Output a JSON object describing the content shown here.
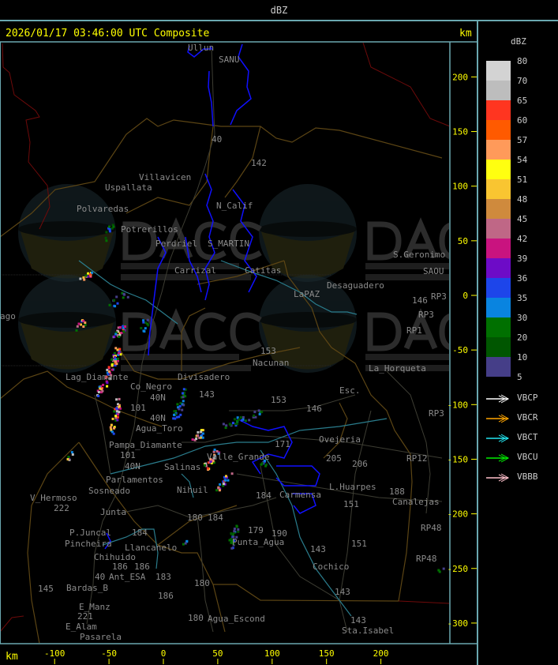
{
  "header": {
    "unit_label": "dBZ"
  },
  "map": {
    "title": "2026/01/17 03:46:00 UTC Composite",
    "km_label": "km",
    "y_axis_ticks": [
      200,
      150,
      100,
      50,
      0,
      -50,
      -100,
      -150,
      -200,
      -250,
      -300
    ],
    "x_axis_ticks": [
      -100,
      -50,
      0,
      50,
      100,
      150,
      200
    ],
    "watermark": {
      "logo_text": "DACC",
      "line1": "Dirección de Agricultura",
      "line2": "y Contingencias Climáticas",
      "url": "http://www.contingencias.mendoza.gov.ar"
    },
    "places": [
      "Ullun",
      "SANU",
      "40",
      "142",
      "Villavicen",
      "Uspallata",
      "N_Calif",
      "Polvaredas",
      "Potrerillos",
      "Perdriel",
      "S_MARTIN",
      "Carrizal",
      "Catitas",
      "S.Geronimo",
      "SAOU",
      "Desaguadero",
      "LaPAZ",
      "146",
      "RP3",
      "RP3",
      "RP1",
      "153",
      "Nacunan",
      "La_Horqueta",
      "Lag_Diamante",
      "Co_Negro",
      "Divisadero",
      "40N",
      "143",
      "153",
      "146",
      "Esc.",
      "101",
      "40N",
      "Agua_Toro",
      "RP3",
      "Pampa_Diamante",
      "101",
      "40N",
      "Salinas",
      "Parlamentos",
      "Sosneado",
      "Nihuil",
      "V_Hermoso",
      "222",
      "Junta",
      "184",
      "Ovejeria",
      "205",
      "206",
      "L.Huarpes",
      "151",
      "188",
      "Canalejas",
      "Carmensa",
      "180",
      "184",
      "179",
      "190",
      "P.Juncal",
      "Pincheira",
      "184",
      "Llancanelo",
      "Punta_Agua",
      "151",
      "143",
      "RP48",
      "RP48",
      "Chihuido",
      "186",
      "186",
      "183",
      "Ant_ESA",
      "40",
      "Cochico",
      "145",
      "Bardas_B",
      "180",
      "186",
      "143",
      "E_Manz",
      "221",
      "E_Alam",
      "Pasarela",
      "180",
      "Agua_Escond",
      "143",
      "Sta.Isabel",
      "RP12",
      "171",
      "Valle_Grande",
      "ago"
    ]
  },
  "legend": {
    "title": "dBZ",
    "levels": [
      {
        "label": "80",
        "color": "#d3d3d3"
      },
      {
        "label": "70",
        "color": "#bdbdbd"
      },
      {
        "label": "65",
        "color": "#ff3520"
      },
      {
        "label": "60",
        "color": "#ff5a00"
      },
      {
        "label": "57",
        "color": "#ff9a5a"
      },
      {
        "label": "54",
        "color": "#ffff10"
      },
      {
        "label": "51",
        "color": "#f9c531"
      },
      {
        "label": "48",
        "color": "#cf8a3d"
      },
      {
        "label": "45",
        "color": "#bf6786"
      },
      {
        "label": "42",
        "color": "#c9137f"
      },
      {
        "label": "39",
        "color": "#6d0bc7"
      },
      {
        "label": "36",
        "color": "#1d45ea"
      },
      {
        "label": "35",
        "color": "#0984e0"
      },
      {
        "label": "30",
        "color": "#007000"
      },
      {
        "label": "20",
        "color": "#005600"
      },
      {
        "label": "10",
        "color": "#453e88"
      },
      {
        "label": "5",
        "color": ""
      }
    ],
    "radars": [
      {
        "name": "VBCP",
        "color": "#ffffff"
      },
      {
        "name": "VBCR",
        "color": "#ffa500"
      },
      {
        "name": "VBCT",
        "color": "#22e6f0"
      },
      {
        "name": "VBCU",
        "color": "#00ee00"
      },
      {
        "name": "VBBB",
        "color": "#ffc0cb"
      }
    ]
  }
}
